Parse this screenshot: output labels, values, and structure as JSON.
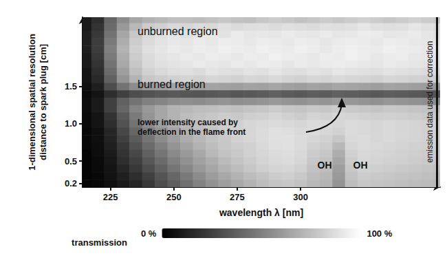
{
  "chart_data": {
    "type": "heatmap",
    "xlabel": "wavelength λ [nm]",
    "ylabel": [
      "1-dimensional spatial resolution",
      "distance to spark plug [cm]"
    ],
    "xlim": [
      214,
      355
    ],
    "xticks": [
      225,
      250,
      275,
      300
    ],
    "ylim": [
      0.15,
      2.43
    ],
    "yticks": [
      0.2,
      0.5,
      {
        "value": 1,
        "label": "1.0"
      },
      1.5
    ],
    "grid": false,
    "colorbar": {
      "label": "transmission",
      "range": [
        0,
        100
      ],
      "ticks": [
        {
          "value": 0,
          "label": "0 %"
        },
        {
          "value": 100,
          "label": "100 %"
        }
      ]
    },
    "annotations": [
      "unburned region",
      "burned region",
      "lower intensity caused by\ndeflection in the flame front",
      "OH",
      "OH",
      "emission data used for correction"
    ],
    "x": [
      215,
      220,
      225,
      230,
      235,
      240,
      245,
      250,
      255,
      260,
      265,
      270,
      275,
      280,
      285,
      290,
      295,
      300,
      305,
      310,
      315,
      320,
      325,
      330,
      335,
      340,
      345,
      350,
      355
    ],
    "y": [
      2.4,
      2.3,
      2.2,
      2.1,
      2.0,
      1.9,
      1.8,
      1.7,
      1.6,
      1.5,
      1.4,
      1.3,
      1.2,
      1.1,
      1.0,
      0.9,
      0.8,
      0.7,
      0.6,
      0.5,
      0.4,
      0.3,
      0.2
    ],
    "cells": [
      [
        10,
        18,
        40,
        55,
        65,
        70,
        72,
        75,
        75,
        74,
        76,
        78,
        76,
        75,
        78,
        80,
        78,
        76,
        78,
        80,
        78,
        80,
        82,
        80,
        78,
        80,
        82,
        80,
        78
      ],
      [
        10,
        20,
        42,
        60,
        72,
        80,
        82,
        85,
        84,
        86,
        85,
        88,
        86,
        87,
        88,
        86,
        88,
        87,
        86,
        88,
        87,
        88,
        90,
        88,
        87,
        88,
        90,
        88,
        86
      ],
      [
        12,
        22,
        45,
        65,
        78,
        85,
        88,
        90,
        88,
        90,
        91,
        89,
        92,
        90,
        91,
        90,
        92,
        91,
        90,
        92,
        90,
        91,
        93,
        92,
        90,
        91,
        92,
        90,
        88
      ],
      [
        12,
        24,
        48,
        68,
        80,
        86,
        89,
        91,
        90,
        92,
        91,
        93,
        92,
        91,
        93,
        92,
        91,
        93,
        92,
        90,
        92,
        93,
        92,
        91,
        93,
        92,
        91,
        90,
        89
      ],
      [
        12,
        24,
        50,
        70,
        82,
        88,
        90,
        92,
        91,
        93,
        92,
        94,
        93,
        92,
        94,
        93,
        92,
        94,
        93,
        91,
        93,
        94,
        93,
        92,
        94,
        93,
        92,
        91,
        90
      ],
      [
        10,
        22,
        48,
        68,
        80,
        86,
        89,
        90,
        92,
        91,
        93,
        92,
        91,
        93,
        92,
        94,
        93,
        92,
        91,
        93,
        92,
        94,
        93,
        91,
        92,
        93,
        91,
        90,
        89
      ],
      [
        10,
        20,
        45,
        66,
        78,
        85,
        88,
        89,
        90,
        92,
        91,
        90,
        92,
        91,
        93,
        92,
        90,
        92,
        91,
        92,
        93,
        92,
        91,
        90,
        92,
        91,
        90,
        89,
        88
      ],
      [
        8,
        18,
        42,
        62,
        75,
        82,
        85,
        87,
        88,
        86,
        89,
        88,
        87,
        89,
        88,
        90,
        88,
        87,
        89,
        88,
        90,
        89,
        88,
        87,
        89,
        88,
        87,
        86,
        85
      ],
      [
        8,
        16,
        38,
        58,
        70,
        78,
        80,
        82,
        83,
        82,
        84,
        83,
        82,
        84,
        83,
        85,
        83,
        82,
        84,
        83,
        85,
        84,
        83,
        82,
        84,
        83,
        82,
        81,
        80
      ],
      [
        6,
        12,
        30,
        45,
        55,
        60,
        62,
        64,
        63,
        62,
        64,
        63,
        62,
        64,
        63,
        65,
        63,
        62,
        64,
        63,
        65,
        64,
        63,
        62,
        64,
        63,
        62,
        61,
        60
      ],
      [
        4,
        8,
        18,
        25,
        30,
        32,
        34,
        35,
        34,
        33,
        35,
        36,
        34,
        35,
        36,
        38,
        36,
        35,
        37,
        36,
        38,
        37,
        36,
        35,
        37,
        36,
        35,
        34,
        33
      ],
      [
        5,
        10,
        25,
        38,
        45,
        50,
        52,
        55,
        56,
        55,
        57,
        58,
        56,
        57,
        58,
        60,
        58,
        57,
        59,
        58,
        60,
        59,
        58,
        57,
        59,
        58,
        57,
        56,
        55
      ],
      [
        5,
        10,
        25,
        40,
        52,
        60,
        65,
        70,
        72,
        74,
        75,
        76,
        75,
        77,
        78,
        80,
        78,
        77,
        79,
        78,
        80,
        79,
        78,
        77,
        79,
        78,
        77,
        76,
        75
      ],
      [
        4,
        8,
        20,
        35,
        48,
        58,
        65,
        70,
        74,
        76,
        78,
        80,
        79,
        81,
        82,
        84,
        82,
        80,
        83,
        82,
        84,
        83,
        82,
        81,
        82,
        81,
        80,
        79,
        78
      ],
      [
        4,
        8,
        18,
        32,
        45,
        55,
        62,
        68,
        72,
        75,
        78,
        80,
        82,
        84,
        85,
        86,
        85,
        84,
        86,
        85,
        84,
        86,
        85,
        84,
        85,
        84,
        83,
        82,
        81
      ],
      [
        3,
        6,
        15,
        28,
        40,
        50,
        58,
        65,
        70,
        74,
        77,
        80,
        82,
        84,
        86,
        88,
        87,
        85,
        86,
        84,
        82,
        86,
        85,
        84,
        85,
        84,
        83,
        82,
        81
      ],
      [
        3,
        6,
        14,
        25,
        36,
        46,
        55,
        62,
        68,
        72,
        76,
        79,
        82,
        84,
        86,
        88,
        88,
        86,
        84,
        82,
        78,
        85,
        86,
        84,
        85,
        84,
        83,
        82,
        81
      ],
      [
        3,
        5,
        12,
        22,
        32,
        42,
        50,
        58,
        64,
        70,
        74,
        78,
        80,
        82,
        85,
        87,
        88,
        86,
        82,
        80,
        72,
        84,
        86,
        85,
        84,
        83,
        82,
        81,
        80
      ],
      [
        2,
        5,
        10,
        20,
        28,
        38,
        46,
        54,
        60,
        66,
        72,
        76,
        79,
        82,
        84,
        86,
        87,
        85,
        80,
        78,
        68,
        82,
        85,
        84,
        83,
        82,
        81,
        80,
        79
      ],
      [
        2,
        4,
        9,
        18,
        25,
        34,
        42,
        50,
        57,
        63,
        68,
        73,
        77,
        80,
        83,
        85,
        86,
        84,
        78,
        76,
        65,
        80,
        84,
        83,
        82,
        81,
        80,
        79,
        78
      ],
      [
        2,
        4,
        8,
        15,
        22,
        30,
        38,
        46,
        53,
        60,
        65,
        70,
        74,
        78,
        81,
        83,
        84,
        82,
        76,
        74,
        62,
        78,
        82,
        81,
        80,
        79,
        78,
        77,
        76
      ],
      [
        2,
        3,
        7,
        12,
        18,
        25,
        33,
        40,
        48,
        55,
        61,
        66,
        70,
        74,
        77,
        80,
        81,
        79,
        74,
        72,
        60,
        76,
        80,
        79,
        78,
        77,
        76,
        75,
        74
      ],
      [
        2,
        3,
        6,
        10,
        15,
        22,
        30,
        37,
        44,
        51,
        57,
        62,
        66,
        70,
        74,
        77,
        78,
        76,
        72,
        70,
        58,
        74,
        78,
        77,
        76,
        75,
        74,
        73,
        72
      ]
    ]
  }
}
